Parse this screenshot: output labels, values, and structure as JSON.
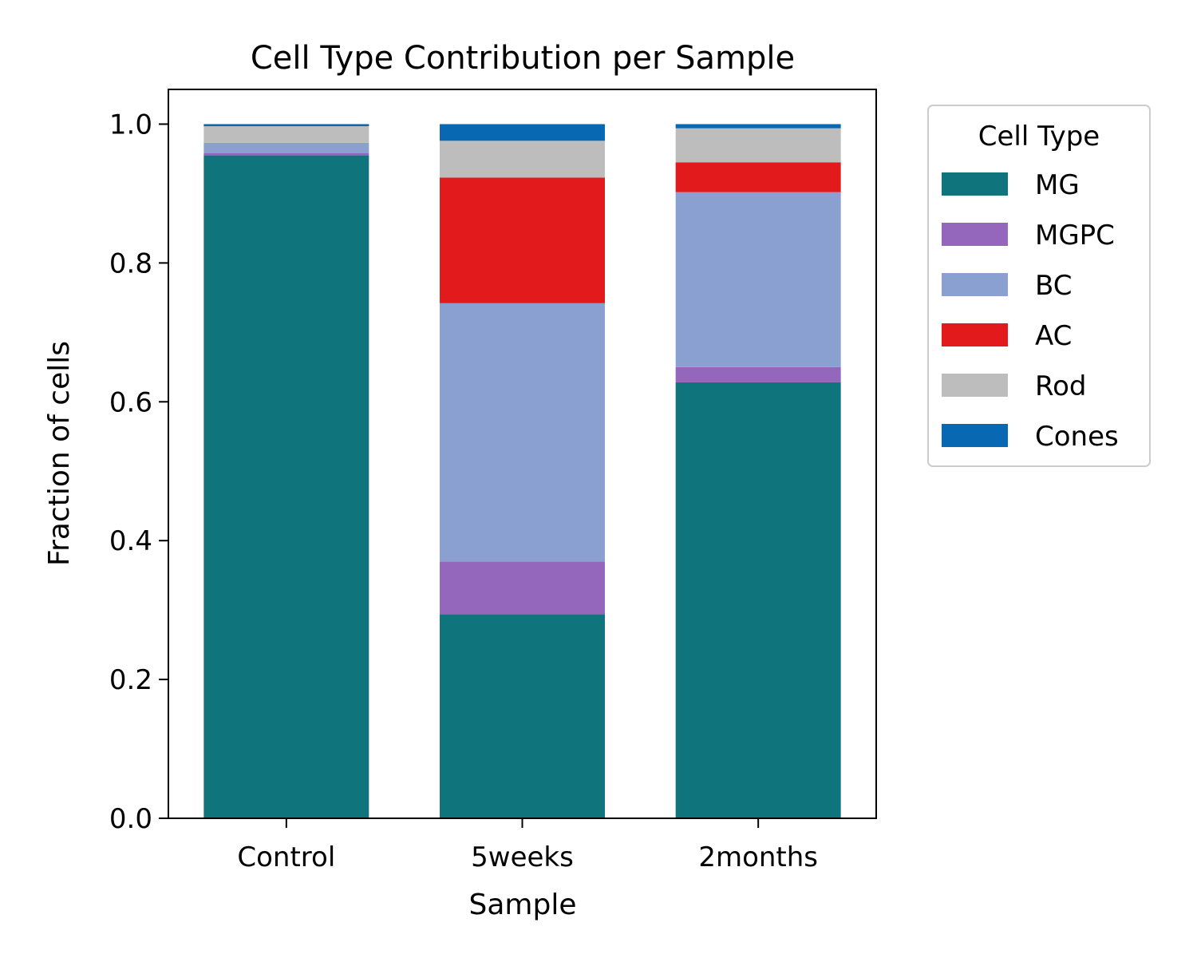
{
  "chart_data": {
    "type": "bar",
    "stacked": true,
    "title": "Cell Type Contribution per Sample",
    "xlabel": "Sample",
    "ylabel": "Fraction of cells",
    "ylim": [
      0,
      1.05
    ],
    "yticks": [
      "0.0",
      "0.2",
      "0.4",
      "0.6",
      "0.8",
      "1.0"
    ],
    "grid": false,
    "categories": [
      "Control",
      "5weeks",
      "2months"
    ],
    "legend": {
      "title": "Cell Type",
      "placement": "outside-right-top"
    },
    "series": [
      {
        "name": "MG",
        "color": "#0f747c",
        "values": [
          0.955,
          0.294,
          0.628
        ]
      },
      {
        "name": "MGPC",
        "color": "#9467bd",
        "values": [
          0.003,
          0.076,
          0.022
        ]
      },
      {
        "name": "BC",
        "color": "#8aa0d0",
        "values": [
          0.015,
          0.372,
          0.252
        ]
      },
      {
        "name": "AC",
        "color": "#e31a1c",
        "values": [
          0.0,
          0.181,
          0.043
        ]
      },
      {
        "name": "Rod",
        "color": "#bdbdbd",
        "values": [
          0.024,
          0.053,
          0.049
        ]
      },
      {
        "name": "Cones",
        "color": "#0868b2",
        "values": [
          0.003,
          0.024,
          0.006
        ]
      }
    ]
  }
}
